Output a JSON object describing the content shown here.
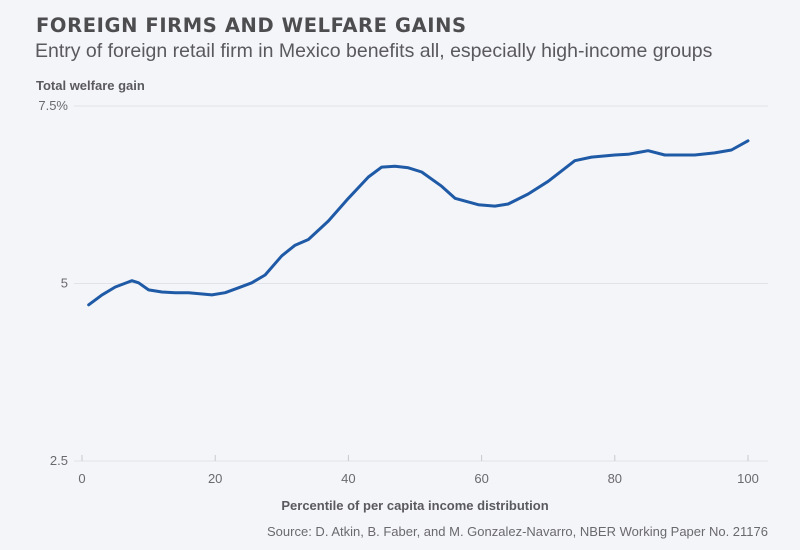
{
  "header": {
    "title": "FOREIGN FIRMS AND WELFARE GAINS",
    "subtitle": "Entry of foreign retail firm in Mexico benefits all, especially high-income groups"
  },
  "footer": {
    "source": "Source: D. Atkin, B. Faber, and M. Gonzalez-Navarro, NBER Working Paper No. 21176"
  },
  "colors": {
    "background": "#f4f5f9",
    "line": "#1f5aa6",
    "gridline": "#e2e3e8",
    "text": "#555559"
  },
  "chart_data": {
    "type": "line",
    "title": "FOREIGN FIRMS AND WELFARE GAINS",
    "subtitle": "Entry of foreign retail firm in Mexico benefits all, especially high-income groups",
    "xlabel": "Percentile of per capita income distribution",
    "ylabel": "Total welfare gain",
    "xlim": [
      0,
      100
    ],
    "ylim": [
      2.5,
      7.5
    ],
    "xticks": [
      0,
      20,
      40,
      60,
      80,
      100
    ],
    "xtick_labels": [
      "0",
      "20",
      "40",
      "60",
      "80",
      "100"
    ],
    "yticks": [
      2.5,
      5,
      7.5
    ],
    "ytick_labels": [
      "2.5",
      "5",
      "7.5%"
    ],
    "grid": "horizontal",
    "legend": "none",
    "series": [
      {
        "name": "Total welfare gain",
        "x": [
          1,
          3,
          5,
          7.5,
          8.5,
          10,
          12,
          14,
          16,
          19.5,
          21.5,
          23.5,
          25.5,
          27.5,
          30,
          32,
          34,
          37,
          40,
          43,
          45,
          47,
          49,
          51,
          54,
          56,
          59.5,
          62,
          64,
          67,
          70,
          74,
          76.5,
          80,
          82,
          85,
          87.5,
          92,
          95,
          97.5,
          100
        ],
        "values": [
          4.7,
          4.84,
          4.95,
          5.04,
          5.01,
          4.91,
          4.88,
          4.87,
          4.87,
          4.84,
          4.87,
          4.94,
          5.01,
          5.12,
          5.39,
          5.54,
          5.62,
          5.88,
          6.2,
          6.5,
          6.64,
          6.65,
          6.63,
          6.57,
          6.37,
          6.2,
          6.11,
          6.09,
          6.12,
          6.26,
          6.44,
          6.73,
          6.78,
          6.81,
          6.82,
          6.87,
          6.81,
          6.81,
          6.84,
          6.88,
          7.01
        ]
      }
    ],
    "source": "Source: D. Atkin, B. Faber, and M. Gonzalez-Navarro, NBER Working Paper No. 21176"
  }
}
